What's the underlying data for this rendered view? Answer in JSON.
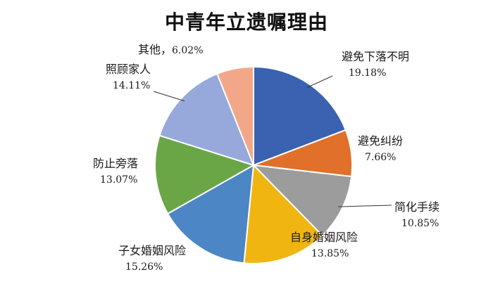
{
  "chart_data": {
    "type": "pie",
    "title": "中青年立遗嘱理由",
    "slices": [
      {
        "name": "避免下落不明",
        "pct_label": "19.18%",
        "value": 19.18,
        "color": "#3a62b0"
      },
      {
        "name": "避免纠纷",
        "pct_label": "7.66%",
        "value": 7.66,
        "color": "#e0702a"
      },
      {
        "name": "简化手续",
        "pct_label": "10.85%",
        "value": 10.85,
        "color": "#9c9c9c"
      },
      {
        "name": "自身婚姻风险",
        "pct_label": "13.85%",
        "value": 13.85,
        "color": "#f1b511"
      },
      {
        "name": "子女婚姻风险",
        "pct_label": "15.26%",
        "value": 15.26,
        "color": "#4c86c4"
      },
      {
        "name": "防止旁落",
        "pct_label": "13.07%",
        "value": 13.07,
        "color": "#6aa646"
      },
      {
        "name": "照顾家人",
        "pct_label": "14.11%",
        "value": 14.11,
        "color": "#96a9da"
      },
      {
        "name": "其他",
        "pct_label": "6.02%",
        "value": 6.02,
        "color": "#f2a888"
      }
    ]
  }
}
